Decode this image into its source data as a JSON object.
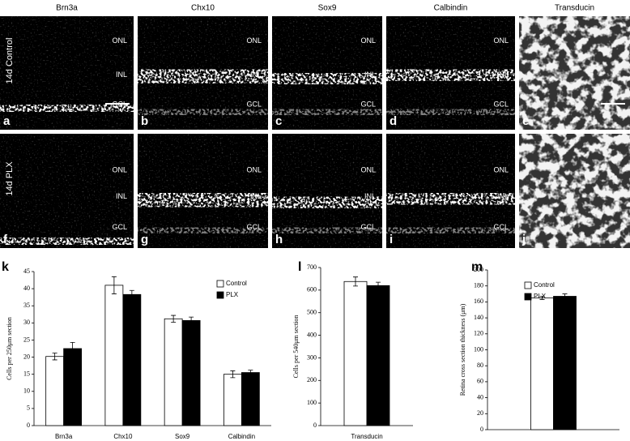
{
  "figure": {
    "column_headers": [
      "Brn3a",
      "Chx10",
      "Sox9",
      "Calbindin",
      "Transducin"
    ],
    "row_labels": [
      "14d Control",
      "14d PLX"
    ],
    "panel_letters": [
      "a",
      "b",
      "c",
      "d",
      "e",
      "f",
      "g",
      "h",
      "i",
      "j"
    ],
    "layer_labels": [
      "ONL",
      "INL",
      "GCL"
    ]
  },
  "chart_data": [
    {
      "type": "bar",
      "label": "k",
      "ylabel": "Cells per 250μm section",
      "categories": [
        "Brn3a",
        "Chx10",
        "Sox9",
        "Calbindin"
      ],
      "series": [
        {
          "name": "Control",
          "color": "#ffffff",
          "values": [
            20.2,
            41,
            31.2,
            15
          ],
          "errors": [
            1,
            2.5,
            1,
            1
          ]
        },
        {
          "name": "PLX",
          "color": "#000000",
          "values": [
            22.5,
            38.3,
            30.7,
            15.5
          ],
          "errors": [
            1.8,
            1.2,
            1,
            0.7
          ]
        }
      ],
      "ylim": [
        0,
        45
      ],
      "yticks": [
        0,
        5,
        10,
        15,
        20,
        25,
        30,
        35,
        40,
        45
      ],
      "legend": "top-right"
    },
    {
      "type": "bar",
      "label": "l",
      "ylabel": "Cells per 540μm section",
      "categories": [
        "Transducin"
      ],
      "series": [
        {
          "name": "Control",
          "color": "#ffffff",
          "values": [
            638
          ],
          "errors": [
            20
          ]
        },
        {
          "name": "PLX",
          "color": "#000000",
          "values": [
            620
          ],
          "errors": [
            15
          ]
        }
      ],
      "ylim": [
        0,
        700
      ],
      "yticks": [
        0,
        100,
        200,
        300,
        400,
        500,
        600,
        700
      ]
    },
    {
      "type": "bar",
      "label": "m",
      "ylabel": "Retina cross section thickness (μm)",
      "categories": [
        null
      ],
      "series": [
        {
          "name": "Control",
          "color": "#ffffff",
          "values": [
            165
          ],
          "errors": [
            2
          ]
        },
        {
          "name": "PLX",
          "color": "#000000",
          "values": [
            167
          ],
          "errors": [
            3
          ]
        }
      ],
      "ylim": [
        0,
        200
      ],
      "yticks": [
        0,
        20,
        40,
        60,
        80,
        100,
        120,
        140,
        160,
        180,
        200
      ],
      "legend": "top-right"
    }
  ]
}
